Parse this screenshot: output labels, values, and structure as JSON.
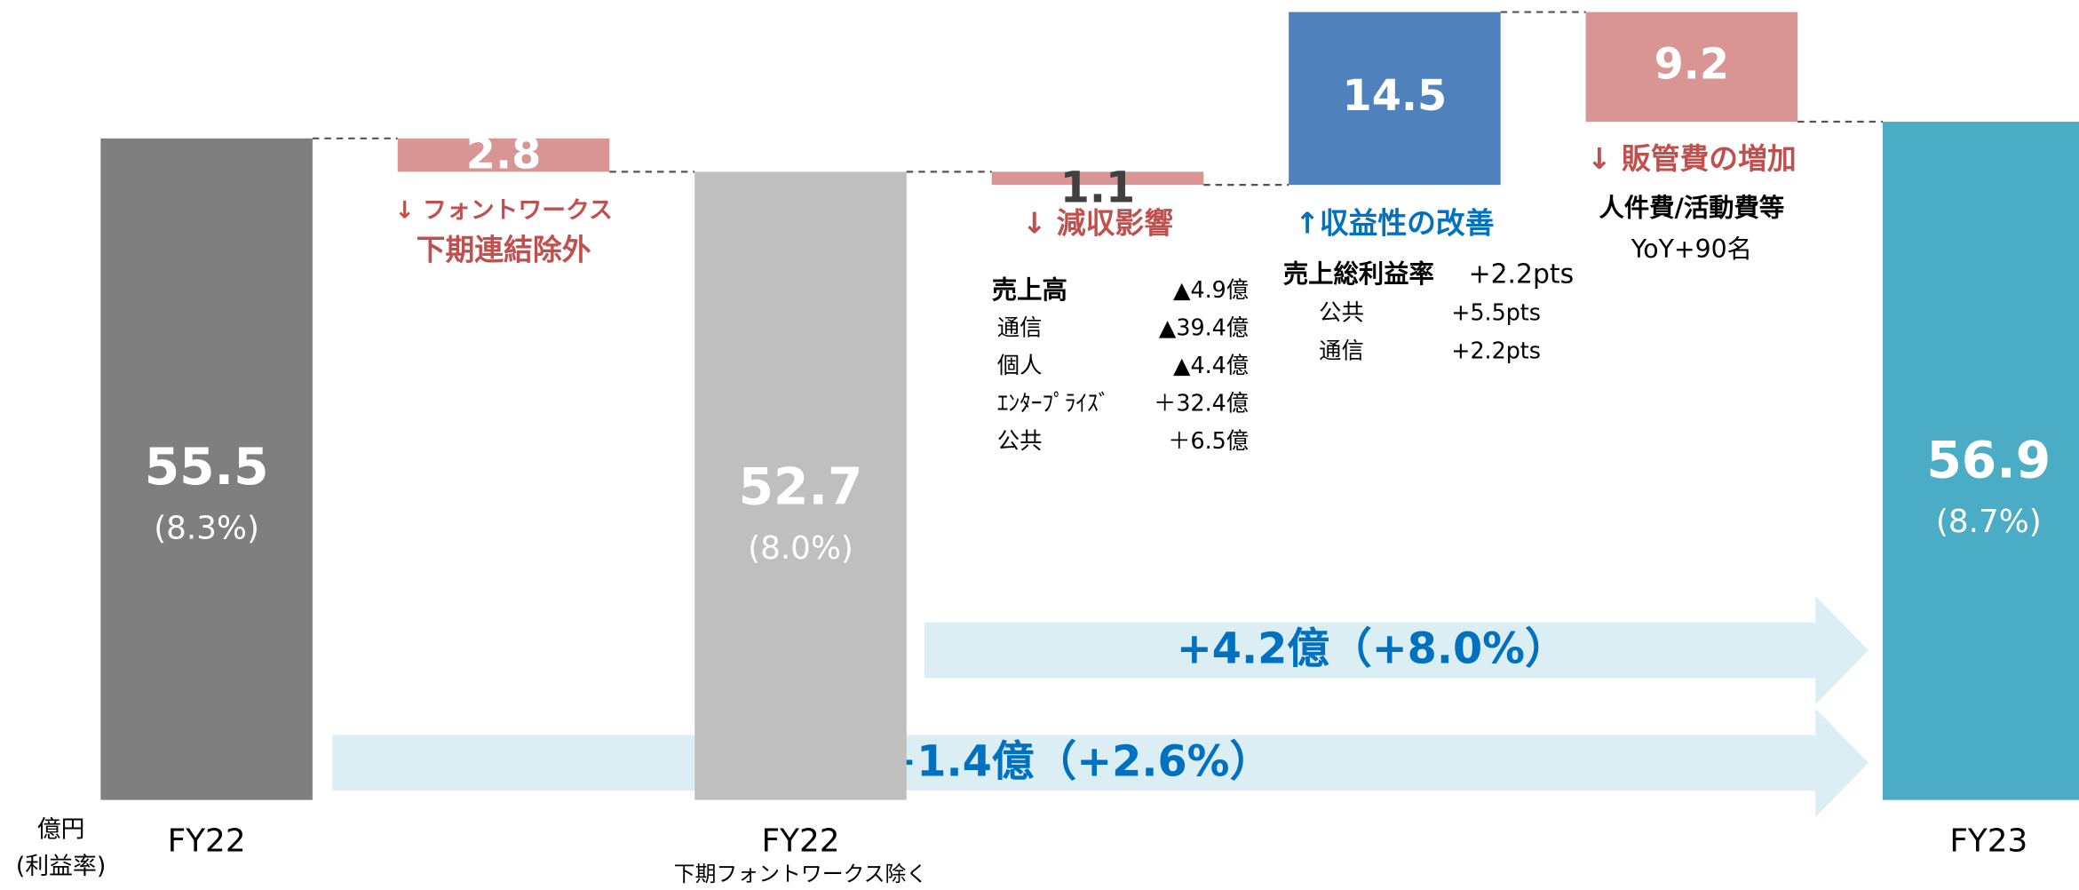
{
  "chart_data": {
    "type": "waterfall",
    "ylim": [
      0,
      67
    ],
    "unit_label": [
      "億円",
      "(利益率)"
    ],
    "steps": [
      {
        "label": "FY22",
        "value": 55.5,
        "value_label": "55.5",
        "margin_label": "(8.3%)",
        "kind": "total",
        "color": "#7f7f7f"
      },
      {
        "value": -2.8,
        "value_label": "2.8",
        "kind": "delta",
        "color": "#d99594",
        "annotation": [
          "↓ フォントワークス",
          "下期連結除外"
        ]
      },
      {
        "label": "FY22",
        "sublabel": "下期フォントワークス除く",
        "value": 52.7,
        "value_label": "52.7",
        "margin_label": "(8.0%)",
        "kind": "total",
        "color": "#bfbfbf"
      },
      {
        "value": -1.1,
        "value_label": "1.1",
        "kind": "delta",
        "color": "#d99594",
        "annotation": [
          "↓ 減収影響"
        ],
        "details": [
          [
            "売上高",
            "▲4.9億"
          ],
          [
            "通信",
            "▲39.4億"
          ],
          [
            "個人",
            "▲4.4億"
          ],
          [
            "ｴﾝﾀｰﾌﾟﾗｲｽﾞ",
            "＋32.4億"
          ],
          [
            "公共",
            "＋6.5億"
          ]
        ]
      },
      {
        "value": 14.5,
        "value_label": "14.5",
        "kind": "delta",
        "color": "#4f81bd",
        "annotation": [
          "↑収益性の改善"
        ],
        "details": [
          [
            "売上総利益率",
            "+2.2pts"
          ],
          [
            "公共",
            "+5.5pts"
          ],
          [
            "通信",
            "+2.2pts"
          ]
        ]
      },
      {
        "value": -9.2,
        "value_label": "9.2",
        "kind": "delta",
        "color": "#d99594",
        "annotation": [
          "↓ 販管費の増加"
        ],
        "details": [
          [
            "人件費/活動費等"
          ],
          [
            "YoY+90名"
          ]
        ]
      },
      {
        "label": "FY23",
        "value": 56.9,
        "value_label": "56.9",
        "margin_label": "(8.7%)",
        "kind": "total",
        "color": "#4bacc6"
      }
    ],
    "arrows": [
      "+4.2億（+8.0%）",
      "+1.4億（+2.6%）"
    ]
  }
}
